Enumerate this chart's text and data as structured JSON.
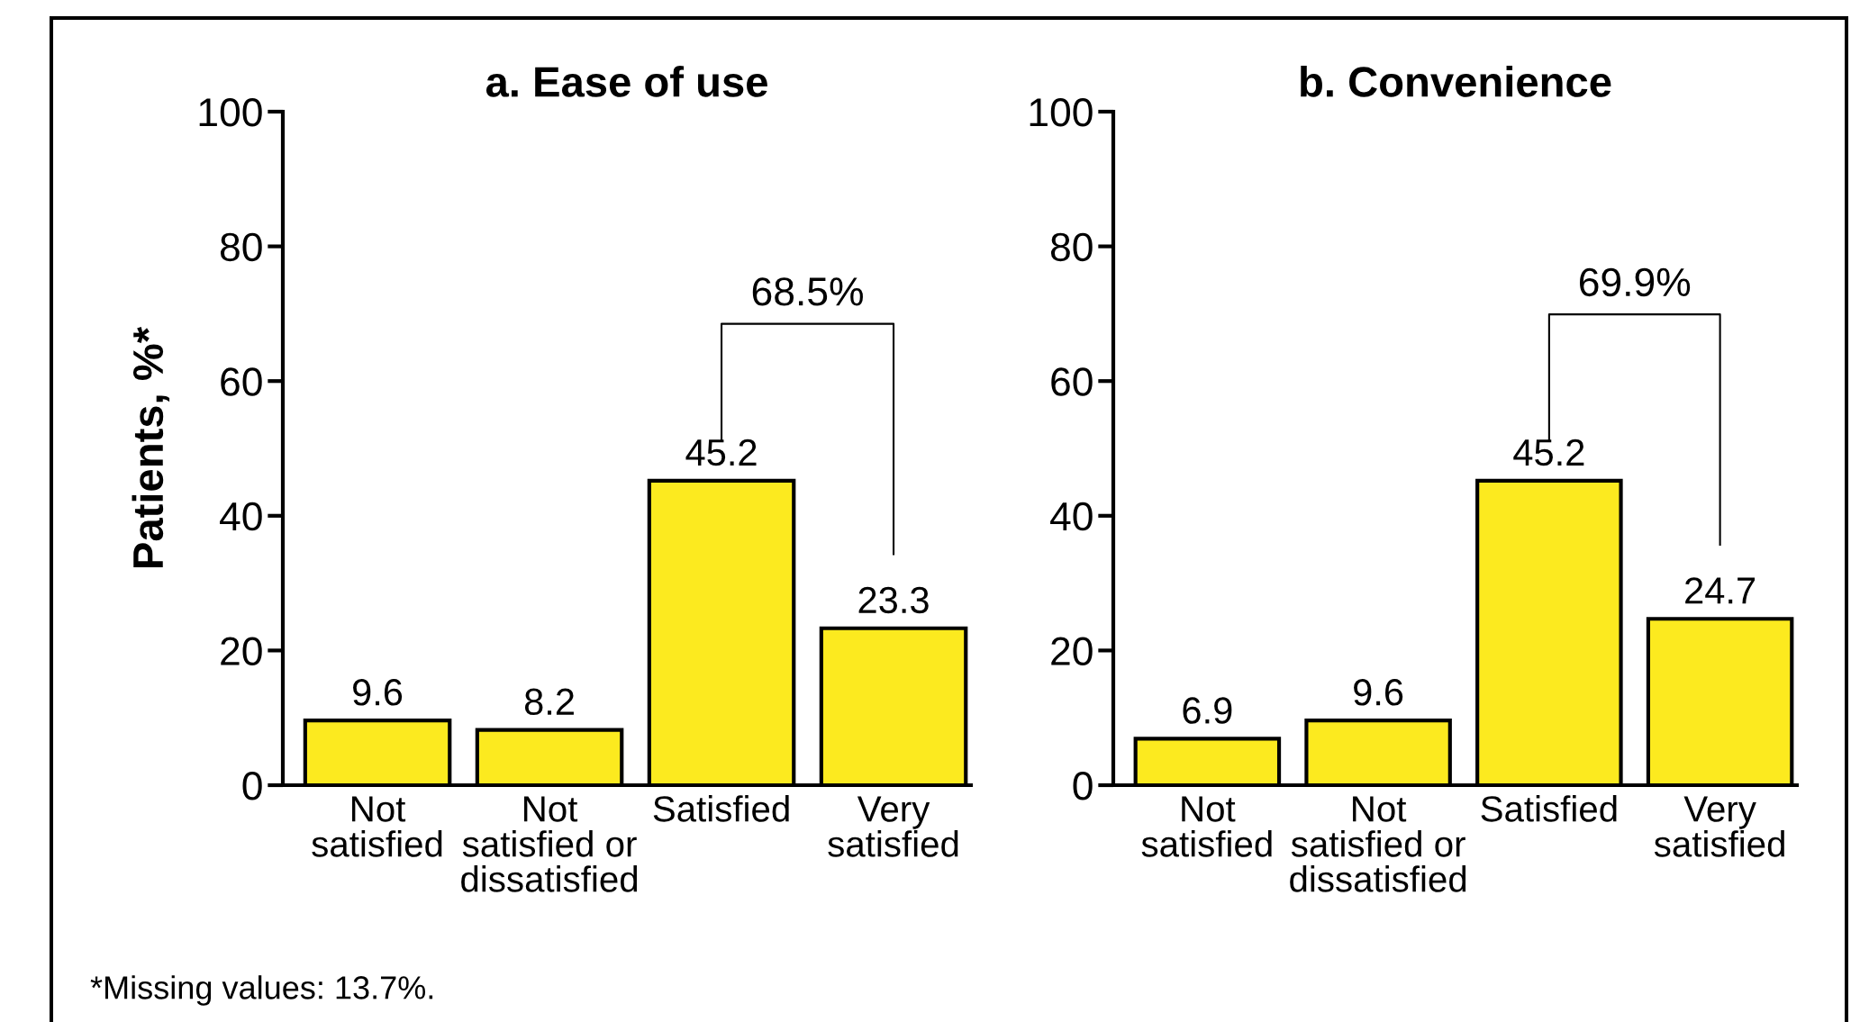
{
  "chart_data": [
    {
      "type": "bar",
      "title": "a. Ease of use",
      "ylabel": "Patients, %*",
      "categories": [
        "Not\nsatisfied",
        "Not\nsatisfied or\ndissatisfied",
        "Satisfied",
        "Very\nsatisfied"
      ],
      "values": [
        9.6,
        8.2,
        45.2,
        23.3
      ],
      "color": "#fcea1f",
      "data_labels": true,
      "ylim": [
        0,
        100
      ],
      "yticks": [
        0,
        20,
        40,
        60,
        80,
        100
      ],
      "grid": false,
      "legend": false,
      "annotations": [
        "68.5%",
        "*Missing values: 13.7%."
      ]
    },
    {
      "type": "bar",
      "title": "b. Convenience",
      "categories": [
        "Not\nsatisfied",
        "Not\nsatisfied or\ndissatisfied",
        "Satisfied",
        "Very\nsatisfied"
      ],
      "values": [
        6.9,
        9.6,
        45.2,
        24.7
      ],
      "color": "#fcea1f",
      "data_labels": true,
      "ylim": [
        0,
        100
      ],
      "yticks": [
        0,
        20,
        40,
        60,
        80,
        100
      ],
      "grid": false,
      "legend": false,
      "annotations": [
        "69.9%"
      ]
    }
  ]
}
